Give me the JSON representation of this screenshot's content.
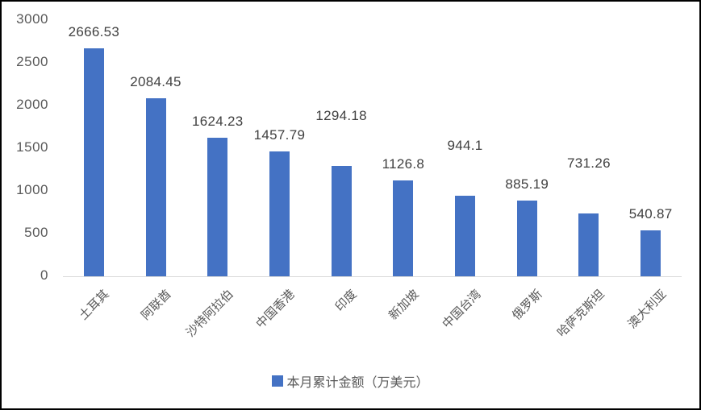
{
  "chart_data": {
    "type": "bar",
    "title": "",
    "xlabel": "",
    "ylabel": "",
    "categories": [
      "土耳其",
      "阿联酋",
      "沙特阿拉伯",
      "中国香港",
      "印度",
      "新加坡",
      "中国台湾",
      "俄罗斯",
      "哈萨克斯坦",
      "澳大利亚"
    ],
    "series": [
      {
        "name": "本月累计金额（万美元）",
        "values": [
          2666.53,
          2084.45,
          1624.23,
          1457.79,
          1294.18,
          1126.8,
          944.1,
          885.19,
          731.26,
          540.87
        ]
      }
    ],
    "value_labels": [
      "2666.53",
      "2084.45",
      "1624.23",
      "1457.79",
      "1294.18",
      "1126.8",
      "944.1",
      "885.19",
      "731.26",
      "540.87"
    ],
    "raised_value_labels": [
      false,
      false,
      false,
      false,
      true,
      false,
      true,
      false,
      true,
      false
    ],
    "y_ticks": [
      "3000",
      "2500",
      "2000",
      "1500",
      "1000",
      "500",
      "0"
    ],
    "ylim": [
      0,
      3000
    ],
    "grid": false,
    "legend_position": "bottom",
    "category_label_rotation_deg": -45,
    "colors": {
      "bar": "#4472c4",
      "axis_line": "#d9d9d9",
      "value_label_text": "#404040",
      "tick_text": "#595959",
      "frame": "#000000",
      "background": "#ffffff"
    }
  },
  "legend": {
    "label": "本月累计金额（万美元）"
  }
}
